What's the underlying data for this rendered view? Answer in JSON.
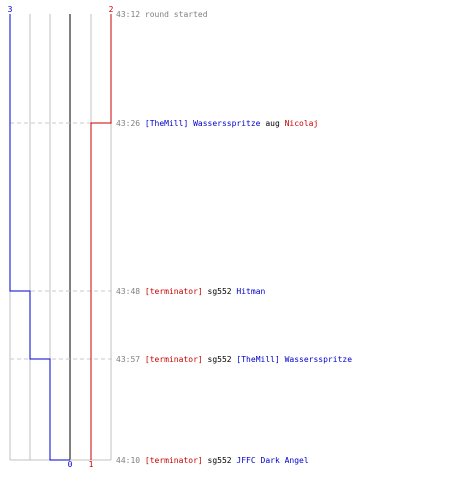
{
  "colors": {
    "team_left": "#0000cc",
    "team_right": "#cc0000",
    "grid": "#c0c0c0",
    "center_line": "#808080",
    "dashed": "#c8c8c8",
    "time_text": "#808080",
    "neutral_text": "#000000"
  },
  "chart_data": {
    "type": "line",
    "title": "",
    "x_ticks": [
      0,
      1,
      2,
      3
    ],
    "series": [
      {
        "name": "",
        "team": "left",
        "values": [
          3,
          3,
          2,
          1,
          0
        ]
      },
      {
        "name": "",
        "team": "right",
        "values": [
          2,
          1,
          1,
          1,
          1
        ]
      }
    ],
    "start_label": {
      "x": 3,
      "text": "3"
    },
    "end_labels": [
      {
        "team": "left",
        "text": "0"
      },
      {
        "team": "right",
        "text": "1"
      }
    ],
    "top_right_label": "2",
    "events": [
      {
        "time": "43:12",
        "parts": [
          {
            "text": "round started",
            "color": "time"
          }
        ]
      },
      {
        "time": "43:26",
        "parts": [
          {
            "text": "[TheMill] Wassersspritze",
            "color": "left"
          },
          {
            "text": " aug ",
            "color": "neutral"
          },
          {
            "text": "Nicolaj",
            "color": "right"
          }
        ]
      },
      {
        "time": "43:48",
        "parts": [
          {
            "text": "[terminator]",
            "color": "right"
          },
          {
            "text": " sg552 ",
            "color": "neutral"
          },
          {
            "text": "Hitman",
            "color": "left"
          }
        ]
      },
      {
        "time": "43:57",
        "parts": [
          {
            "text": "[terminator]",
            "color": "right"
          },
          {
            "text": " sg552 ",
            "color": "neutral"
          },
          {
            "text": "[TheMill] Wassersspritze",
            "color": "left"
          }
        ]
      },
      {
        "time": "44:10",
        "parts": [
          {
            "text": "[terminator]",
            "color": "right"
          },
          {
            "text": " sg552 ",
            "color": "neutral"
          },
          {
            "text": "JFFC Dark Angel",
            "color": "left"
          }
        ]
      }
    ]
  }
}
